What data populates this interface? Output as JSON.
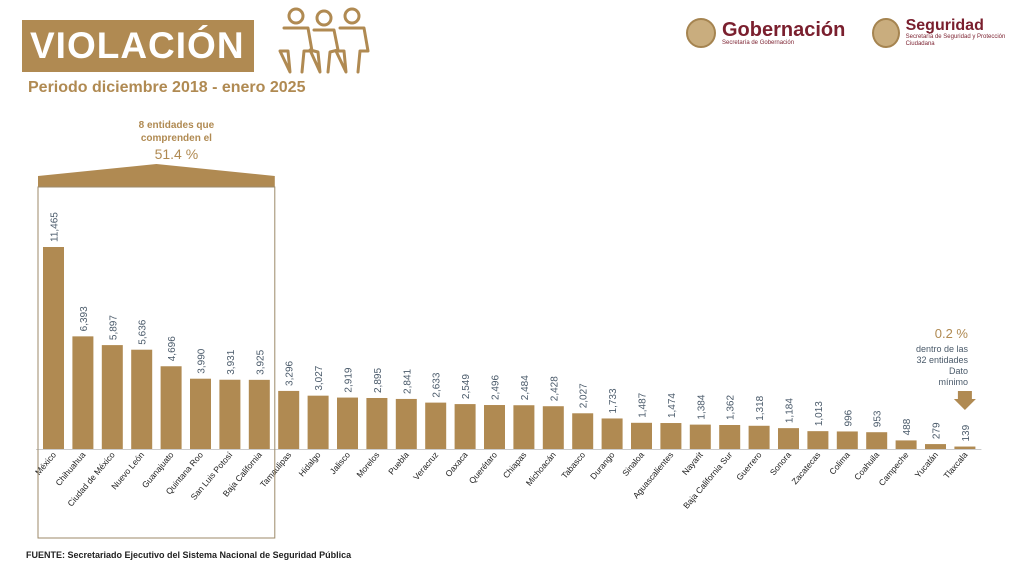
{
  "header": {
    "title": "VIOLACIÓN",
    "subtitle": "Periodo diciembre 2018 - enero 2025",
    "people_icon": "group-of-people-icon"
  },
  "logos": {
    "gobernacion": {
      "name": "Gobernación",
      "tagline": "Secretaría de Gobernación"
    },
    "seguridad": {
      "name": "Seguridad",
      "tagline": "Secretaría de Seguridad y Protección Ciudadana"
    }
  },
  "annotations": {
    "group_top": {
      "line1": "8 entidades que",
      "line2": "comprenden el",
      "percent": "51.4 %"
    },
    "group_min": {
      "percent": "0.2 %",
      "lines": [
        "dentro de las",
        "32 entidades",
        "Dato",
        "mínimo"
      ]
    }
  },
  "source": "FUENTE: Secretariado Ejecutivo del Sistema Nacional de Seguridad Pública",
  "colors": {
    "bar": "#b08a52",
    "label": "#4a5a6a",
    "accent": "#b08a52",
    "brand": "#7a1f2e"
  },
  "chart_data": {
    "type": "bar",
    "categories": [
      "México",
      "Chihuahua",
      "Ciudad de México",
      "Nuevo León",
      "Guanajuato",
      "Quintana Roo",
      "San Luis Potosí",
      "Baja California",
      "Tamaulipas",
      "Hidalgo",
      "Jalisco",
      "Morelos",
      "Puebla",
      "Veracruz",
      "Oaxaca",
      "Querétaro",
      "Chiapas",
      "Michoacán",
      "Tabasco",
      "Durango",
      "Sinaloa",
      "Aguascalientes",
      "Nayarit",
      "Baja California Sur",
      "Guerrero",
      "Sonora",
      "Zacatecas",
      "Colima",
      "Coahuila",
      "Campeche",
      "Yucatán",
      "Tlaxcala"
    ],
    "values": [
      11465,
      6393,
      5897,
      5636,
      4696,
      3990,
      3931,
      3925,
      3296,
      3027,
      2919,
      2895,
      2841,
      2633,
      2549,
      2496,
      2484,
      2428,
      2027,
      1733,
      1487,
      1474,
      1384,
      1362,
      1318,
      1184,
      1013,
      996,
      953,
      488,
      279,
      139
    ],
    "value_labels": [
      "11,465",
      "6,393",
      "5,897",
      "5,636",
      "4,696",
      "3,990",
      "3,931",
      "3,925",
      "3,296",
      "3,027",
      "2,919",
      "2,895",
      "2,841",
      "2,633",
      "2,549",
      "2,496",
      "2,484",
      "2,428",
      "2,027",
      "1,733",
      "1,487",
      "1,474",
      "1,384",
      "1,362",
      "1,318",
      "1,184",
      "1,013",
      "996",
      "953",
      "488",
      "279",
      "139"
    ],
    "highlight_group": 8,
    "ylim": [
      0,
      11465
    ],
    "grid": false,
    "title": "",
    "xlabel": "",
    "ylabel": ""
  }
}
